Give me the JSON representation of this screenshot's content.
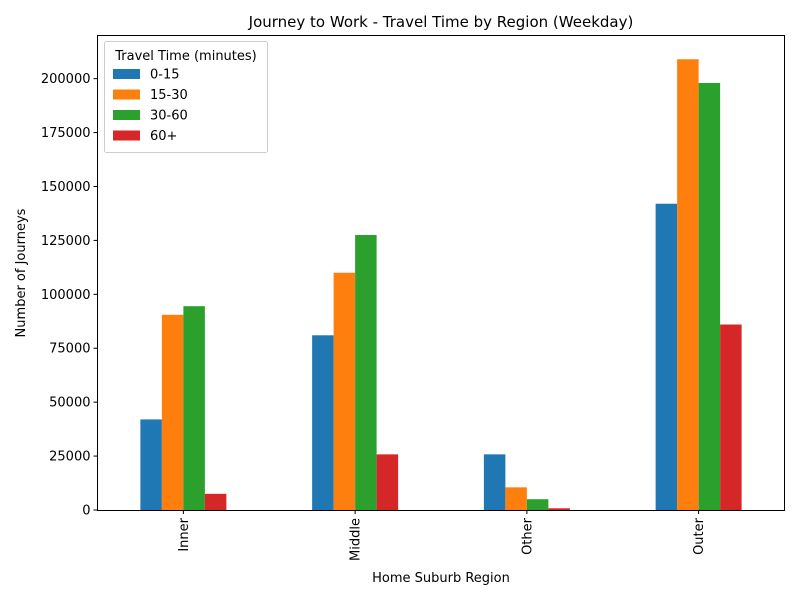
{
  "chart_data": {
    "type": "bar",
    "title": "Journey to Work - Travel Time by Region (Weekday)",
    "xlabel": "Home Suburb Region",
    "ylabel": "Number of Journeys",
    "categories": [
      "Inner",
      "Middle",
      "Other",
      "Outer"
    ],
    "series": [
      {
        "name": "0-15",
        "color": "#1f77b4",
        "values": [
          42000,
          81000,
          25800,
          142000
        ]
      },
      {
        "name": "15-30",
        "color": "#ff7f0e",
        "values": [
          90500,
          110000,
          10500,
          209000
        ]
      },
      {
        "name": "30-60",
        "color": "#2ca02c",
        "values": [
          94500,
          127500,
          5000,
          198000
        ]
      },
      {
        "name": "60+",
        "color": "#d62728",
        "values": [
          7500,
          25800,
          800,
          86000
        ]
      }
    ],
    "ylim": [
      0,
      220000
    ],
    "yticks": [
      0,
      25000,
      50000,
      75000,
      100000,
      125000,
      150000,
      175000,
      200000
    ],
    "legend": {
      "title": "Travel Time (minutes)",
      "placement": "top-left"
    },
    "grid": false
  }
}
